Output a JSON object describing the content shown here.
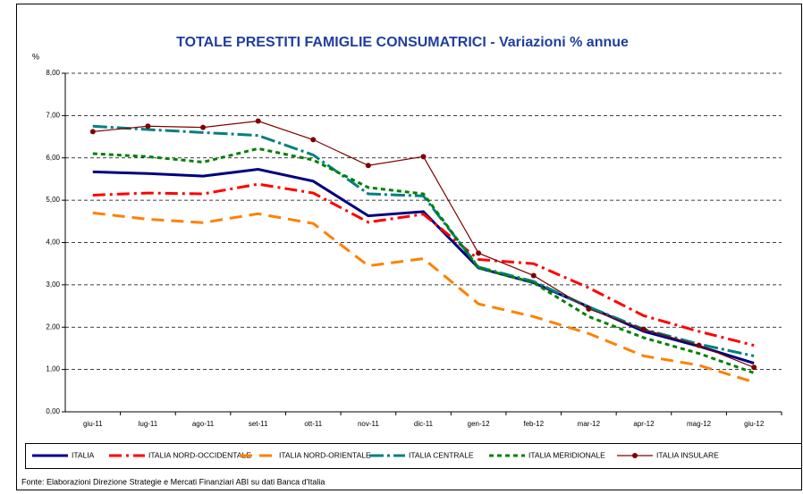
{
  "chart_data": {
    "type": "line",
    "title": "TOTALE PRESTITI FAMIGLIE CONSUMATRICI - Variazioni % annue",
    "y_label": "%",
    "source": "Fonte: Elaborazioni Direzione Strategie e Mercati Finanziari ABI su dati Banca d'Italia",
    "categories": [
      "giu-11",
      "lug-11",
      "ago-11",
      "set-11",
      "ott-11",
      "nov-11",
      "dic-11",
      "gen-12",
      "feb-12",
      "mar-12",
      "apr-12",
      "mag-12",
      "giu-12"
    ],
    "ylim": [
      0,
      8
    ],
    "yticks": [
      {
        "value": 0,
        "label": "0,00"
      },
      {
        "value": 1,
        "label": "1,00"
      },
      {
        "value": 2,
        "label": "2,00"
      },
      {
        "value": 3,
        "label": "3,00"
      },
      {
        "value": 4,
        "label": "4,00"
      },
      {
        "value": 5,
        "label": "5,00"
      },
      {
        "value": 6,
        "label": "6,00"
      },
      {
        "value": 7,
        "label": "7,00"
      },
      {
        "value": 8,
        "label": "8,00"
      }
    ],
    "grid": true,
    "legend": "bottom",
    "series": [
      {
        "name": "ITALIA",
        "color": "#00007f",
        "dash": "none",
        "width": 3,
        "values": [
          5.67,
          5.63,
          5.57,
          5.73,
          5.45,
          4.63,
          4.73,
          3.4,
          3.05,
          2.48,
          1.9,
          1.55,
          1.15
        ]
      },
      {
        "name": "ITALIA NORD-OCCIDENTALE",
        "color": "#ff0000",
        "dash": "14 5 3 5",
        "width": 3,
        "values": [
          5.12,
          5.17,
          5.15,
          5.38,
          5.17,
          4.48,
          4.67,
          3.6,
          3.5,
          2.93,
          2.27,
          1.9,
          1.57
        ]
      },
      {
        "name": "ITALIA NORD-ORIENTALE",
        "color": "#ff8000",
        "dash": "14 8",
        "width": 3,
        "values": [
          4.7,
          4.55,
          4.47,
          4.68,
          4.45,
          3.45,
          3.62,
          2.55,
          2.25,
          1.85,
          1.32,
          1.1,
          0.7
        ]
      },
      {
        "name": "ITALIA CENTRALE",
        "color": "#008080",
        "dash": "16 4 3 4",
        "width": 3,
        "values": [
          6.75,
          6.67,
          6.6,
          6.53,
          6.07,
          5.15,
          5.1,
          3.42,
          3.08,
          2.48,
          1.95,
          1.6,
          1.32
        ]
      },
      {
        "name": "ITALIA MERIDIONALE",
        "color": "#008000",
        "dash": "5 4",
        "width": 3,
        "values": [
          6.1,
          6.03,
          5.9,
          6.22,
          5.95,
          5.3,
          5.15,
          3.4,
          3.05,
          2.25,
          1.75,
          1.38,
          0.92
        ]
      },
      {
        "name": "ITALIA INSULARE",
        "color": "#800000",
        "dash": "none",
        "width": 1.2,
        "marker": "circle",
        "values": [
          6.62,
          6.75,
          6.72,
          6.87,
          6.43,
          5.82,
          6.03,
          3.75,
          3.22,
          2.43,
          1.95,
          1.57,
          1.05
        ]
      }
    ]
  }
}
